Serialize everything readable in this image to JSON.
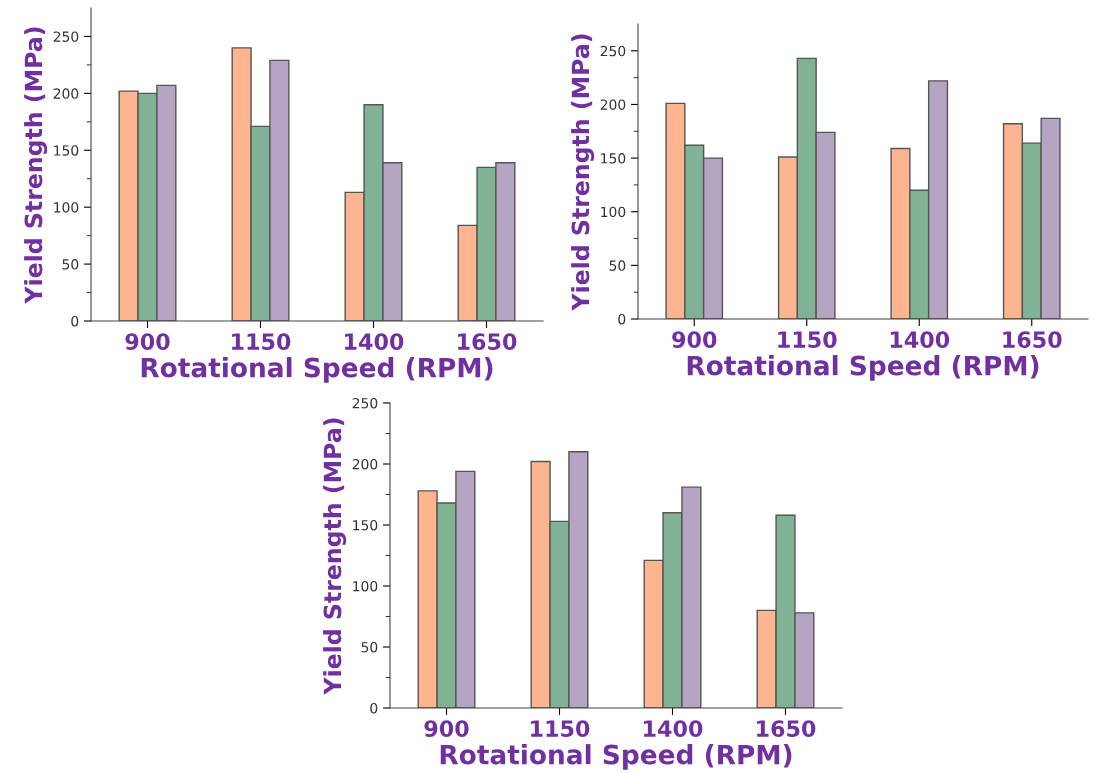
{
  "chart_data": [
    {
      "type": "bar",
      "xlabel": "Rotational Speed (RPM)",
      "ylabel": "Yield Strength (MPa)",
      "categories": [
        "900",
        "1150",
        "1400",
        "1650"
      ],
      "ylim": [
        0,
        275
      ],
      "yticks": [
        0,
        {
          "value": 25,
          "label": null
        },
        50,
        {
          "value": 75,
          "label": null
        },
        100,
        {
          "value": 125,
          "label": null
        },
        150,
        {
          "value": 175,
          "label": null
        },
        200,
        {
          "value": 225,
          "label": null
        },
        250
      ],
      "grid": false,
      "series": [
        {
          "color": "#fdb590",
          "values": [
            202,
            240,
            113,
            84
          ]
        },
        {
          "color": "#80b296",
          "values": [
            200,
            171,
            190,
            135
          ]
        },
        {
          "color": "#b6a5c2",
          "values": [
            207,
            229,
            139,
            139
          ]
        }
      ]
    },
    {
      "type": "bar",
      "xlabel": "Rotational Speed (RPM)",
      "ylabel": "Yield Strength (MPa)",
      "categories": [
        "900",
        "1150",
        "1400",
        "1650"
      ],
      "ylim": [
        0,
        275
      ],
      "yticks": [
        0,
        {
          "value": 25,
          "label": null
        },
        50,
        {
          "value": 75,
          "label": null
        },
        100,
        {
          "value": 125,
          "label": null
        },
        150,
        {
          "value": 175,
          "label": null
        },
        200,
        {
          "value": 225,
          "label": null
        },
        250
      ],
      "grid": false,
      "series": [
        {
          "color": "#fdb590",
          "values": [
            201,
            151,
            159,
            182
          ]
        },
        {
          "color": "#80b296",
          "values": [
            162,
            243,
            120,
            164
          ]
        },
        {
          "color": "#b6a5c2",
          "values": [
            150,
            174,
            222,
            187
          ]
        }
      ]
    },
    {
      "type": "bar",
      "xlabel": "Rotational Speed (RPM)",
      "ylabel": "Yield Strength (MPa)",
      "categories": [
        "900",
        "1150",
        "1400",
        "1650"
      ],
      "ylim": [
        0,
        250
      ],
      "yticks": [
        0,
        {
          "value": 25,
          "label": null
        },
        50,
        {
          "value": 75,
          "label": null
        },
        100,
        {
          "value": 125,
          "label": null
        },
        150,
        {
          "value": 175,
          "label": null
        },
        200,
        {
          "value": 225,
          "label": null
        },
        250
      ],
      "grid": false,
      "series": [
        {
          "color": "#fdb590",
          "values": [
            178,
            202,
            121,
            80
          ]
        },
        {
          "color": "#80b296",
          "values": [
            168,
            153,
            160,
            158
          ]
        },
        {
          "color": "#b6a5c2",
          "values": [
            194,
            210,
            181,
            78
          ]
        }
      ]
    }
  ]
}
